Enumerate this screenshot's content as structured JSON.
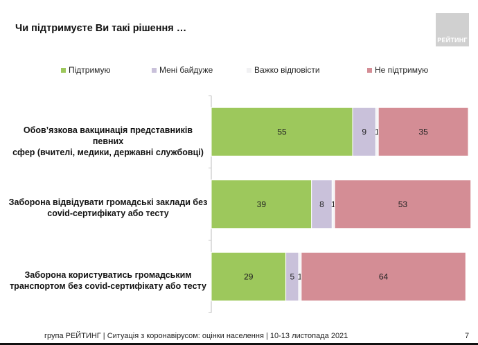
{
  "header": {
    "title": "Чи підтримуєте Ви такі рішення …",
    "logo_text": "РЕЙТИНГ"
  },
  "footer": {
    "text": "група РЕЙТИНГ | Ситуація з коронавірусом: оцінки населення | 10-13 листопада 2021",
    "page_number": "7"
  },
  "chart_data": {
    "type": "bar",
    "orientation": "horizontal",
    "stacked": true,
    "title": "Чи підтримуєте Ви такі рішення …",
    "xlabel": "",
    "ylabel": "",
    "xlim": [
      0,
      100
    ],
    "grid": false,
    "legend_position": "top",
    "categories": [
      "Обов’язкова вакцинація представників певних сфер (вчителі, медики, державні службовці)",
      "Заборона відвідувати громадські заклади без covid-сертифікату або тесту",
      "Заборона користуватись громадським транспортом без covid-сертифікату або тесту"
    ],
    "category_lines": [
      [
        "Обов’язкова вакцинація представників певних",
        "сфер (вчителі, медики, державні службовці)"
      ],
      [
        "Заборона відвідувати громадські заклади без",
        "covid-сертифікату або тесту"
      ],
      [
        "Заборона користуватись громадським",
        "транспортом без covid-сертифікату або тесту"
      ]
    ],
    "series": [
      {
        "name": "Підтримую",
        "color": "#9dc85c",
        "values": [
          55,
          39,
          29
        ]
      },
      {
        "name": "Мені байдуже",
        "color": "#c9c1da",
        "values": [
          9,
          8,
          5
        ]
      },
      {
        "name": "Важко відповісти",
        "color": "#f4f4f6",
        "values": [
          1,
          1,
          1
        ]
      },
      {
        "name": "Не підтримую",
        "color": "#d48d95",
        "values": [
          35,
          53,
          64
        ]
      }
    ]
  }
}
